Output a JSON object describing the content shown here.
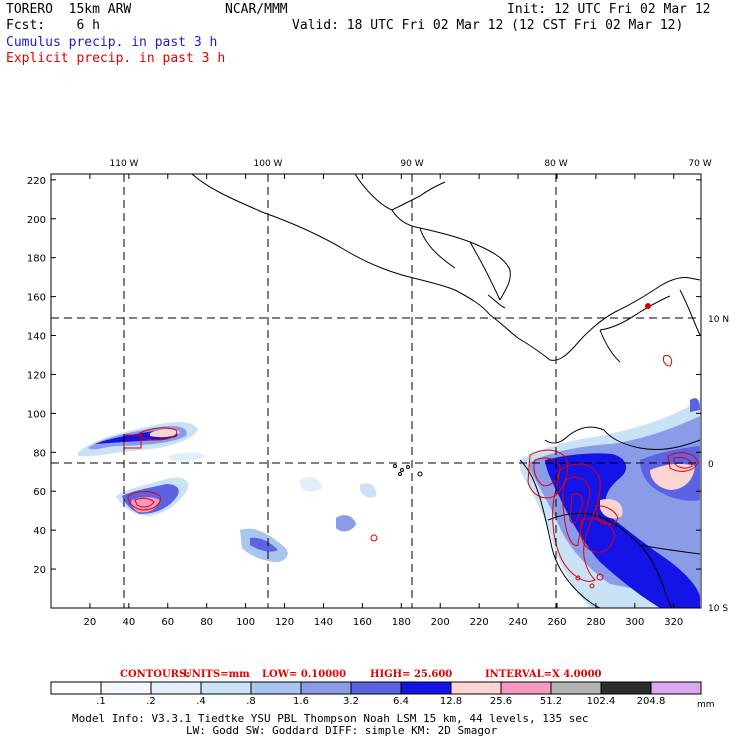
{
  "header": {
    "model": "TORERO  15km ARW",
    "org": "NCAR/MMM",
    "init": "Init: 12 UTC Fri 02 Mar 12",
    "fcst": "Fcst:    6 h",
    "valid": "Valid: 18 UTC Fri 02 Mar 12 (12 CST Fri 02 Mar 12)",
    "field1": "Cumulus precip. in past 3 h",
    "field2": "Explicit precip. in past 3 h"
  },
  "map": {
    "lon_labels": [
      "110 W",
      "100 W",
      "90 W",
      "80 W",
      "70 W"
    ],
    "lat_labels": [
      "10 N",
      "0",
      "10 S"
    ],
    "x_ticks": [
      20,
      40,
      60,
      80,
      100,
      120,
      140,
      160,
      180,
      200,
      220,
      240,
      260,
      280,
      300,
      320
    ],
    "y_ticks": [
      20,
      40,
      60,
      80,
      100,
      120,
      140,
      160,
      180,
      200,
      220
    ],
    "x_range": [
      0,
      334
    ],
    "y_range": [
      0,
      223
    ]
  },
  "contours": {
    "label": "CONTOURS:",
    "units": "UNITS=mm",
    "low": "LOW= 0.10000",
    "high": "HIGH=  25.600",
    "interval": "INTERVAL=X  4.0000"
  },
  "colorbar": {
    "labels": [
      ".1",
      ".2",
      ".4",
      ".8",
      "1.6",
      "3.2",
      "6.4",
      "12.8",
      "25.6",
      "51.2",
      "102.4",
      "204.8"
    ],
    "unit": "mm",
    "colors": [
      "#ffffff",
      "#f4f8fc",
      "#e2eef9",
      "#c9e2f6",
      "#a9c4ee",
      "#8a9ce8",
      "#5b63e2",
      "#1414e6",
      "#fcd4d4",
      "#f49ac0",
      "#b4b4b4",
      "#2c2c2c",
      "#d8a8f0"
    ]
  },
  "footer": {
    "line1": "Model Info: V3.3.1   Tiedtke YSU PBL  Thompson    Noah LSM  15 km,   44 levels,  135 sec",
    "line2": "LW: Godd SW: Goddard DIFF: simple KM: 2D Smagor"
  }
}
